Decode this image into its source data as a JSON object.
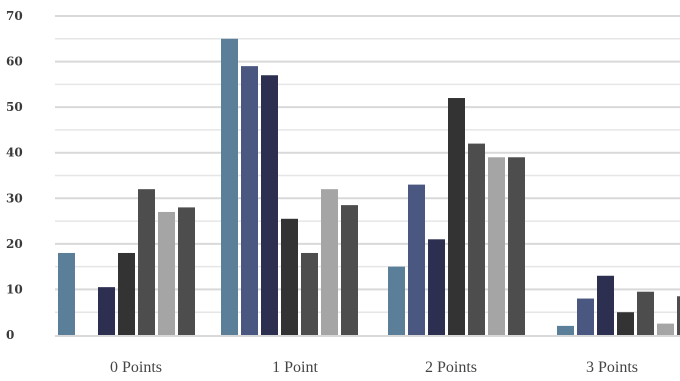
{
  "chart_data": {
    "type": "bar",
    "categories": [
      "0 Points",
      "1 Point",
      "2 Points",
      "3 Points"
    ],
    "series": [
      {
        "values": [
          18,
          65,
          15,
          2
        ],
        "color": "#5b7f99"
      },
      {
        "values": [
          0,
          59,
          33,
          8
        ],
        "color": "#4a5780"
      },
      {
        "values": [
          10.5,
          57,
          21,
          13
        ],
        "color": "#2c2f50"
      },
      {
        "values": [
          18,
          25.5,
          52,
          5
        ],
        "color": "#333333"
      },
      {
        "values": [
          32,
          18,
          42,
          9.5
        ],
        "color": "#4d4d4d"
      },
      {
        "values": [
          27,
          32,
          39,
          2.5
        ],
        "color": "#a5a5a5"
      },
      {
        "values": [
          28,
          28.5,
          39,
          8.5
        ],
        "color": "#4d4d4d"
      }
    ],
    "ylim": [
      0,
      70
    ],
    "yticks": [
      0,
      10,
      20,
      30,
      40,
      50,
      60,
      70
    ],
    "grid": true,
    "legend": "none",
    "title": "",
    "xlabel": "",
    "ylabel": ""
  }
}
